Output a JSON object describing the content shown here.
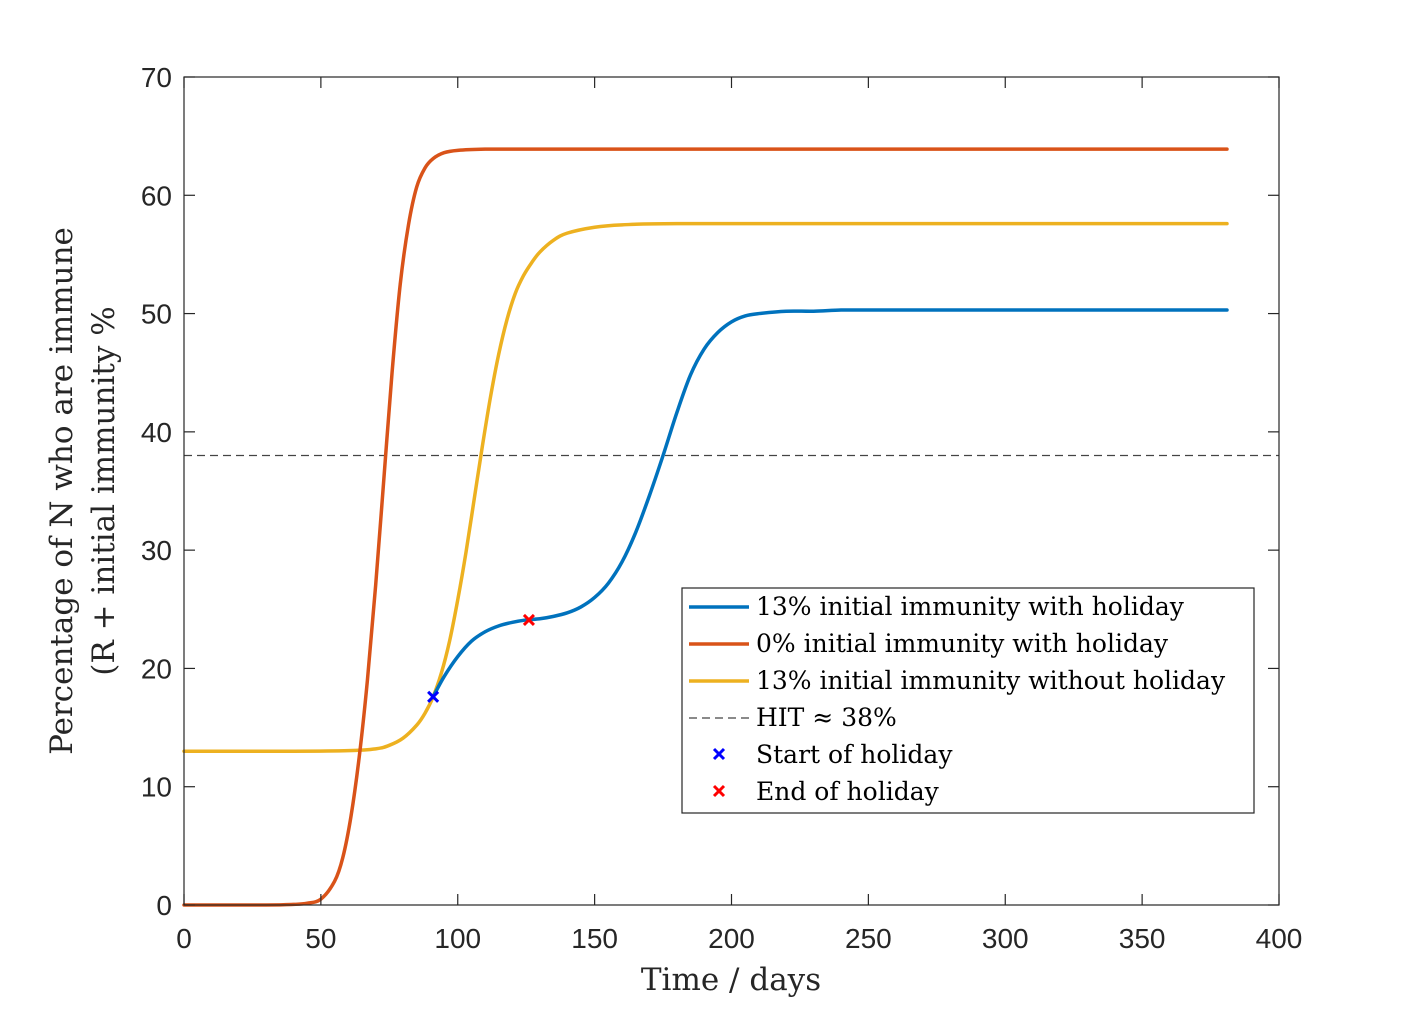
{
  "chart_data": {
    "type": "line",
    "xlabel": "Time / days",
    "ylabel_lines": [
      "Percentage of N who are immune",
      "(R + initial immunity %"
    ],
    "xlim": [
      0,
      400
    ],
    "ylim": [
      0,
      70
    ],
    "xticks": [
      0,
      50,
      100,
      150,
      200,
      250,
      300,
      350,
      400
    ],
    "yticks": [
      0,
      10,
      20,
      30,
      40,
      50,
      60,
      70
    ],
    "grid": false,
    "legend_position": "lower-right",
    "series": [
      {
        "name": "13% initial immunity with holiday",
        "color": "#0072BD",
        "x": [
          91,
          95,
          100,
          105,
          110,
          115,
          120,
          125,
          130,
          135,
          140,
          145,
          150,
          155,
          160,
          165,
          170,
          175,
          180,
          185,
          190,
          195,
          200,
          205,
          210,
          220,
          230,
          240,
          250,
          270,
          300,
          340,
          381
        ],
        "y": [
          17.6,
          19.3,
          21.0,
          22.3,
          23.1,
          23.6,
          23.9,
          24.1,
          24.2,
          24.4,
          24.7,
          25.2,
          26.0,
          27.2,
          29.0,
          31.5,
          34.6,
          38.0,
          41.6,
          44.8,
          47.0,
          48.4,
          49.3,
          49.8,
          50.0,
          50.2,
          50.2,
          50.3,
          50.3,
          50.3,
          50.3,
          50.3,
          50.3
        ]
      },
      {
        "name": "0% initial immunity with holiday",
        "color": "#D95319",
        "x": [
          0,
          30,
          40,
          45,
          50,
          55,
          58,
          61,
          64,
          67,
          70,
          73,
          76,
          79,
          82,
          85,
          88,
          91,
          95,
          100,
          110,
          120,
          150,
          200,
          250,
          300,
          350,
          381
        ],
        "y": [
          0,
          0,
          0.05,
          0.15,
          0.5,
          2.0,
          4.0,
          7.5,
          12.5,
          19.0,
          27.0,
          36.0,
          45.0,
          52.5,
          57.5,
          60.7,
          62.3,
          63.1,
          63.6,
          63.8,
          63.9,
          63.9,
          63.9,
          63.9,
          63.9,
          63.9,
          63.9,
          63.9
        ]
      },
      {
        "name": "13% initial immunity without holiday",
        "color": "#EDB120",
        "x": [
          0,
          40,
          60,
          70,
          75,
          80,
          85,
          88,
          91,
          94,
          97,
          100,
          103,
          106,
          109,
          112,
          115,
          118,
          121,
          124,
          127,
          130,
          135,
          140,
          150,
          160,
          180,
          250,
          381
        ],
        "y": [
          13,
          13,
          13.05,
          13.2,
          13.5,
          14.1,
          15.2,
          16.2,
          17.6,
          19.6,
          22.3,
          25.8,
          29.8,
          34.3,
          38.8,
          43.0,
          46.6,
          49.5,
          51.7,
          53.2,
          54.3,
          55.2,
          56.2,
          56.8,
          57.3,
          57.5,
          57.6,
          57.6,
          57.6
        ]
      }
    ],
    "reference_line": {
      "name": "HIT ≈ 38%",
      "y": 38,
      "color": "#444444",
      "style": "dashed"
    },
    "markers": [
      {
        "name": "Start of holiday",
        "x": 91,
        "y": 17.6,
        "color": "#0000FF",
        "symbol": "x"
      },
      {
        "name": "End of holiday",
        "x": 126,
        "y": 24.1,
        "color": "#FF0000",
        "symbol": "x"
      }
    ]
  }
}
